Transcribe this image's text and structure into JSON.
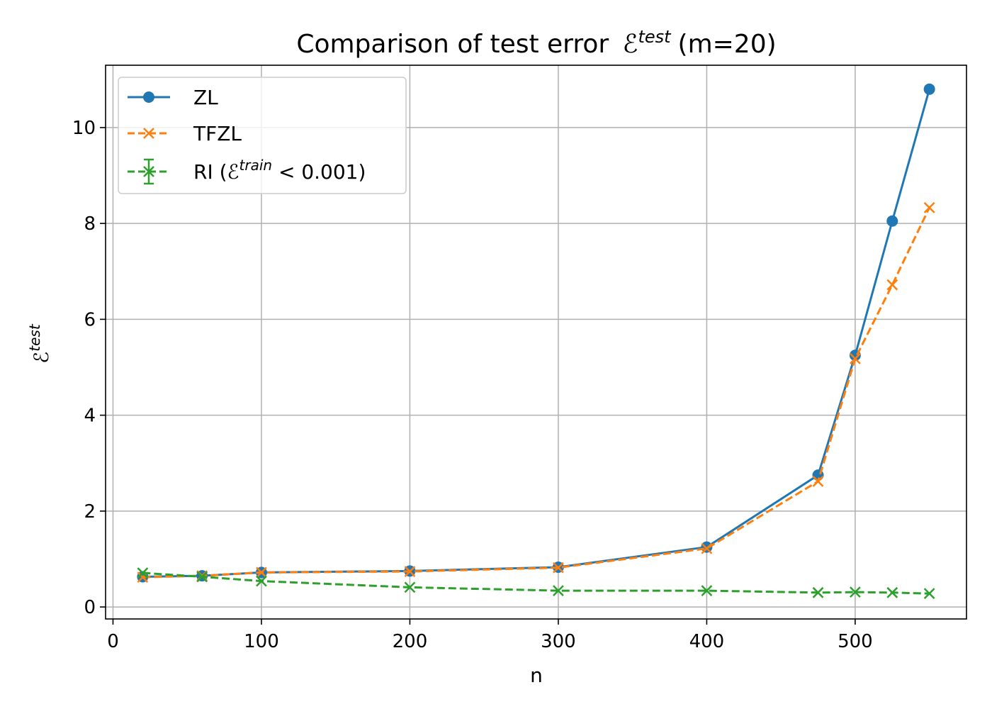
{
  "chart_data": {
    "type": "line",
    "title": "Comparison of test error",
    "title_symbol": "ℰ",
    "title_symbol_sup": "test",
    "title_suffix": "(m=20)",
    "xlabel": "n",
    "ylabel_symbol": "ℰ",
    "ylabel_sup": "test",
    "xlim": [
      -5,
      575
    ],
    "ylim": [
      -0.25,
      11.3
    ],
    "xticks": [
      0,
      100,
      200,
      300,
      400,
      500
    ],
    "yticks": [
      0,
      2,
      4,
      6,
      8,
      10
    ],
    "grid": true,
    "legend_position": "upper-left",
    "series": [
      {
        "name": "ZL",
        "color": "#1f77b4",
        "linestyle": "solid",
        "marker": "circle",
        "x": [
          20,
          60,
          100,
          200,
          300,
          400,
          475,
          500,
          525,
          550
        ],
        "y": [
          0.63,
          0.65,
          0.72,
          0.75,
          0.83,
          1.25,
          2.75,
          5.25,
          8.05,
          10.8
        ]
      },
      {
        "name": "TFZL",
        "color": "#ff7f0e",
        "linestyle": "dashed",
        "marker": "x",
        "x": [
          20,
          60,
          100,
          200,
          300,
          400,
          475,
          500,
          525,
          550
        ],
        "y": [
          0.62,
          0.65,
          0.72,
          0.74,
          0.82,
          1.22,
          2.62,
          5.18,
          6.72,
          8.33
        ]
      },
      {
        "name_prefix": "RI (",
        "name_symbol": "ℰ",
        "name_sup": "train",
        "name_suffix": " < 0.001)",
        "color": "#2ca02c",
        "linestyle": "dashed",
        "marker": "x",
        "errorbars": true,
        "x": [
          20,
          60,
          100,
          200,
          300,
          400,
          475,
          500,
          525,
          550
        ],
        "y": [
          0.71,
          0.63,
          0.54,
          0.41,
          0.34,
          0.34,
          0.3,
          0.31,
          0.3,
          0.28
        ]
      }
    ]
  }
}
